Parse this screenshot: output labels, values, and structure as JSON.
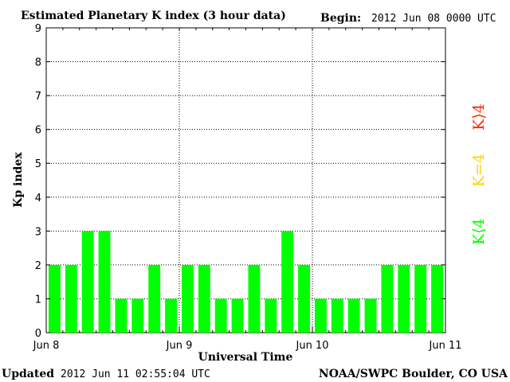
{
  "header": {
    "title": "Estimated Planetary K index (3 hour data)",
    "begin_label": "Begin:",
    "begin_value": "2012 Jun 08 0000 UTC"
  },
  "footer": {
    "updated_label": "Updated",
    "updated_value": "2012 Jun 11 02:55:04 UTC",
    "source": "NOAA/SWPC Boulder, CO USA"
  },
  "colors": {
    "low": "#00ff00",
    "mid": "#ffd200",
    "high": "#ff2a00"
  },
  "legend": {
    "low": "K⟨4",
    "mid": "K=4",
    "high": "K⟩4"
  },
  "chart_data": {
    "type": "bar",
    "xlabel": "Universal Time",
    "ylabel": "Kp index",
    "ylim": [
      0,
      9
    ],
    "yticks": [
      0,
      1,
      2,
      3,
      4,
      5,
      6,
      7,
      8,
      9
    ],
    "xticks": [
      "Jun 8",
      "Jun 9",
      "Jun 10",
      "Jun 11"
    ],
    "interval_hours": 3,
    "grid": "dotted",
    "legend_position": "right",
    "values": [
      2,
      2,
      3,
      3,
      1,
      1,
      2,
      1,
      2,
      2,
      1,
      1,
      2,
      1,
      3,
      2,
      1,
      1,
      1,
      1,
      2,
      2,
      2,
      2
    ]
  }
}
